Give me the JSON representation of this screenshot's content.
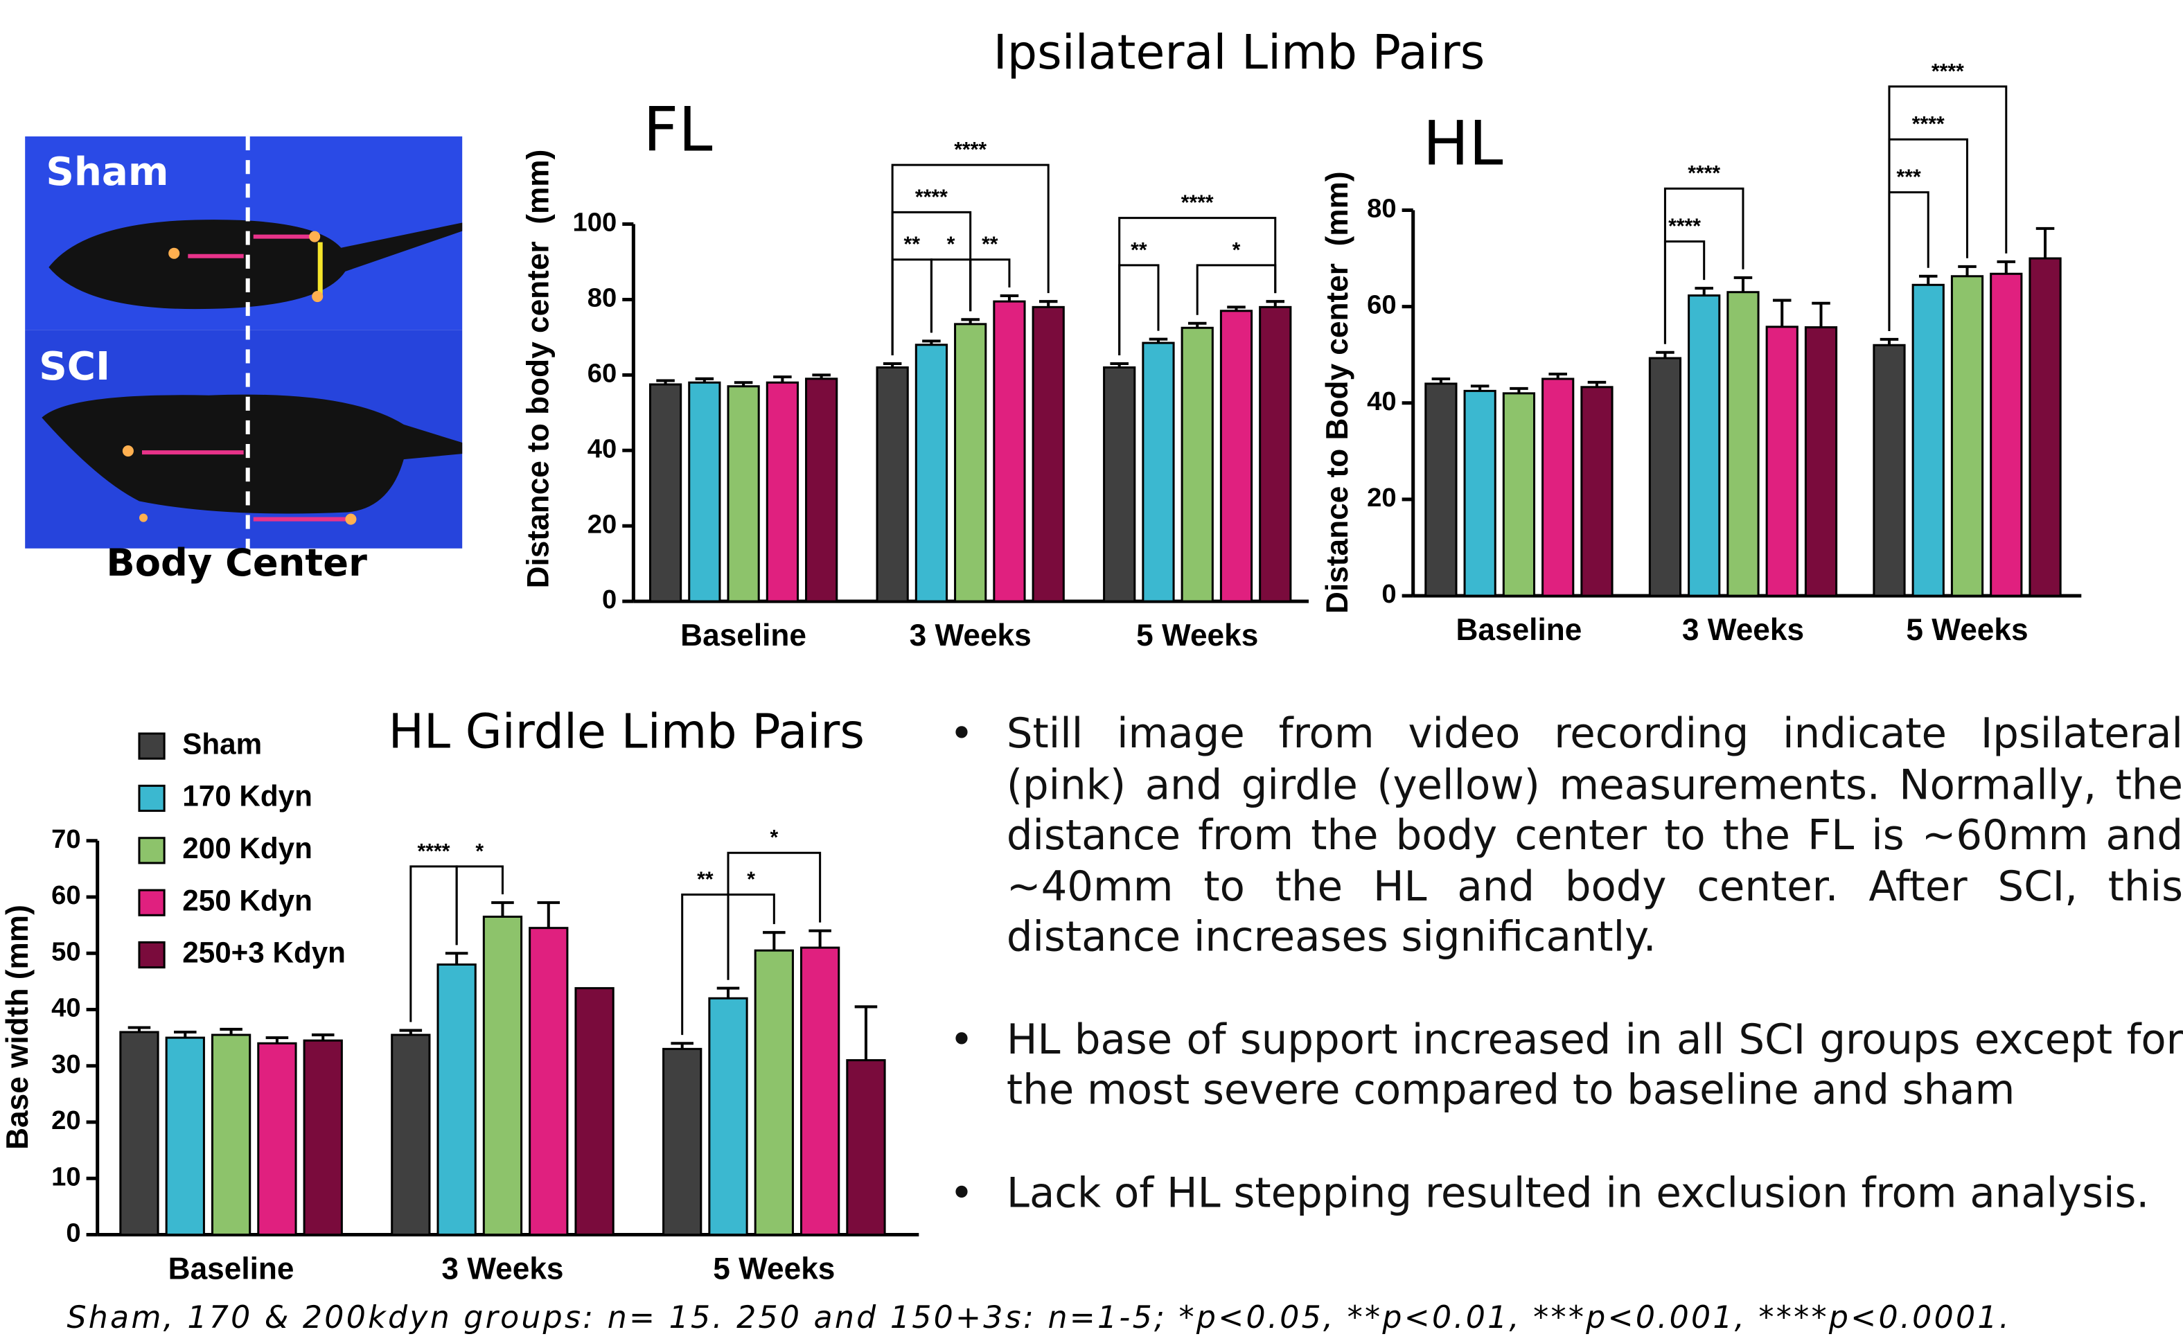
{
  "title": "Ipsilateral Limb Pairs",
  "image": {
    "labels": [
      "Sham",
      "SCI"
    ],
    "caption": "Body Center"
  },
  "chart_data": [
    {
      "type": "bar",
      "title": "FL",
      "y_label": "Distance to body center  (mm)",
      "categories": [
        "Baseline",
        "3 Weeks",
        "5 Weeks"
      ],
      "ylim": [
        0,
        100
      ],
      "yticks": [
        0,
        20,
        40,
        60,
        80,
        100
      ],
      "series": [
        {
          "color": "#404040",
          "values": [
            57.5,
            62,
            62
          ],
          "errors": [
            1,
            1,
            1
          ]
        },
        {
          "color": "#3bb8d0",
          "values": [
            58,
            68,
            68.5
          ],
          "errors": [
            1,
            1,
            1
          ]
        },
        {
          "color": "#8dc36b",
          "values": [
            57,
            73.5,
            72.5
          ],
          "errors": [
            1,
            1.2,
            1.2
          ]
        },
        {
          "color": "#e0207f",
          "values": [
            58,
            79.5,
            77
          ],
          "errors": [
            1.5,
            1.5,
            1
          ]
        },
        {
          "color": "#7a0b3c",
          "values": [
            59,
            78,
            78
          ],
          "errors": [
            1,
            1.5,
            1.5
          ]
        }
      ],
      "annotations": [
        {
          "text": "**",
          "group": 1,
          "between": [
            0,
            1
          ]
        },
        {
          "text": "*",
          "group": 1,
          "between": [
            1,
            2
          ]
        },
        {
          "text": "**",
          "group": 1,
          "between": [
            2,
            3
          ]
        },
        {
          "text": "****",
          "group": 1,
          "between": [
            0,
            2
          ]
        },
        {
          "text": "****",
          "group": 1,
          "between": [
            0,
            4
          ]
        },
        {
          "text": "**",
          "group": 2,
          "between": [
            0,
            1
          ]
        },
        {
          "text": "*",
          "group": 2,
          "between": [
            2,
            4
          ]
        },
        {
          "text": "****",
          "group": 2,
          "between": [
            0,
            4
          ]
        }
      ]
    },
    {
      "type": "bar",
      "title": "HL",
      "y_label": "Distance to Body center  (mm)",
      "categories": [
        "Baseline",
        "3 Weeks",
        "5 Weeks"
      ],
      "ylim": [
        0,
        80
      ],
      "yticks": [
        0,
        20,
        40,
        60,
        80
      ],
      "series": [
        {
          "color": "#404040",
          "values": [
            44,
            49.3,
            52
          ],
          "errors": [
            1,
            1.2,
            1.2
          ]
        },
        {
          "color": "#3bb8d0",
          "values": [
            42.5,
            62.3,
            64.5
          ],
          "errors": [
            1,
            1.5,
            1.8
          ]
        },
        {
          "color": "#8dc36b",
          "values": [
            42,
            63,
            66.3
          ],
          "errors": [
            1,
            3,
            2
          ]
        },
        {
          "color": "#e0207f",
          "values": [
            45,
            55.8,
            66.8
          ],
          "errors": [
            1,
            5.5,
            2.5
          ]
        },
        {
          "color": "#7a0b3c",
          "values": [
            43.3,
            55.7,
            70
          ],
          "errors": [
            1,
            5,
            6.2
          ]
        }
      ],
      "annotations": [
        {
          "text": "****",
          "group": 1,
          "between": [
            0,
            1
          ]
        },
        {
          "text": "****",
          "group": 1,
          "between": [
            0,
            2
          ]
        },
        {
          "text": "***",
          "group": 2,
          "between": [
            0,
            1
          ]
        },
        {
          "text": "****",
          "group": 2,
          "between": [
            0,
            2
          ]
        },
        {
          "text": "****",
          "group": 2,
          "between": [
            0,
            3
          ]
        }
      ]
    },
    {
      "type": "bar",
      "title": "HL Girdle Limb Pairs",
      "y_label": "Base width (mm)",
      "categories": [
        "Baseline",
        "3 Weeks",
        "5 Weeks"
      ],
      "ylim": [
        0,
        70
      ],
      "yticks": [
        0,
        10,
        20,
        30,
        40,
        50,
        60,
        70
      ],
      "series": [
        {
          "name": "Sham",
          "color": "#404040",
          "values": [
            36,
            35.5,
            33
          ],
          "errors": [
            0.8,
            0.8,
            1
          ]
        },
        {
          "name": "170 Kdyn",
          "color": "#3bb8d0",
          "values": [
            35,
            48,
            42
          ],
          "errors": [
            1,
            2,
            1.8
          ]
        },
        {
          "name": "200 Kdyn",
          "color": "#8dc36b",
          "values": [
            35.5,
            56.5,
            50.5
          ],
          "errors": [
            1,
            2.5,
            3.2
          ]
        },
        {
          "name": "250 Kdyn",
          "color": "#e0207f",
          "values": [
            34,
            54.5,
            51
          ],
          "errors": [
            1,
            4.5,
            3
          ]
        },
        {
          "name": "250+3 Kdyn",
          "color": "#7a0b3c",
          "values": [
            34.5,
            43.8,
            31
          ],
          "errors": [
            1,
            null,
            9.5
          ]
        }
      ],
      "annotations": [
        {
          "text": "****",
          "group": 1,
          "between": [
            0,
            1
          ]
        },
        {
          "text": "*",
          "group": 1,
          "between": [
            1,
            2
          ]
        },
        {
          "text": "**",
          "group": 2,
          "between": [
            0,
            1
          ]
        },
        {
          "text": "*",
          "group": 2,
          "between": [
            1,
            2
          ]
        },
        {
          "text": "*",
          "group": 2,
          "between": [
            1,
            3
          ]
        }
      ]
    }
  ],
  "bullets": [
    "Still image from video recording indicate Ipsilateral (pink) and girdle (yellow) measurements. Normally, the distance from the body center to the FL is ~60mm and ~40mm to the HL and body center. After SCI, this distance increases significantly.",
    "HL base of support increased in all SCI groups except for the most severe compared to baseline and sham",
    "Lack of HL stepping resulted in exclusion from analysis."
  ],
  "footnote": "Sham, 170 & 200kdyn groups: n= 15. 250 and 150+3s: n=1-5; *p<0.05, **p<0.01, ***p<0.001, ****p<0.0001."
}
